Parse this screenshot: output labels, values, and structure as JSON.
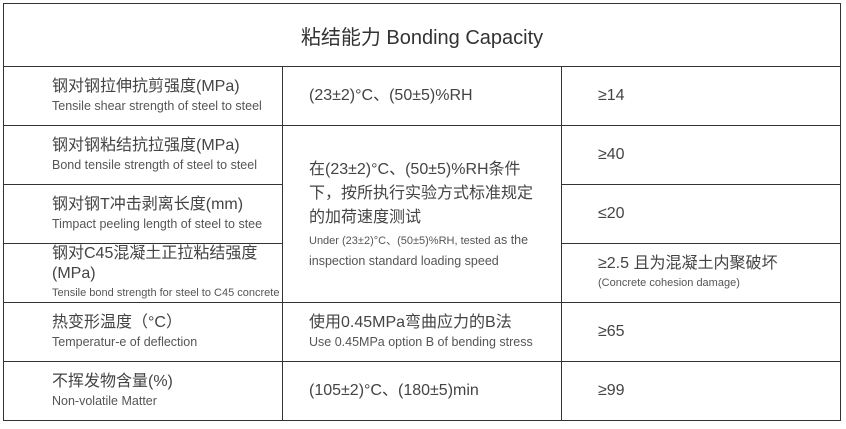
{
  "title": "粘结能力 Bonding Capacity",
  "rows": [
    {
      "name_zh": "钢对钢拉伸抗剪强度(MPa)",
      "name_en": "Tensile shear strength of steel to steel",
      "condition": "(23±2)°C、(50±5)%RH",
      "value": "≥14"
    },
    {
      "name_zh": "钢对钢粘结抗拉强度(MPa)",
      "name_en": "Bond tensile strength of steel to steel",
      "value": "≥40"
    },
    {
      "name_zh": "钢对钢T冲击剥离长度(mm)",
      "name_en": "Timpact peeling length of steel to stee",
      "value": "≤20"
    },
    {
      "name_zh": "钢对C45混凝土正拉粘结强度(MPa)",
      "name_en": "Tensile bond strength for steel to C45 concrete",
      "value": "≥2.5 且为混凝土内聚破坏",
      "value_en": "(Concrete cohesion damage)"
    },
    {
      "name_zh": "热变形温度（°C）",
      "name_en": "Temperatur-e of deflection",
      "condition_zh": "使用0.45MPa弯曲应力的B法",
      "condition_en": "Use 0.45MPa option B of bending stress",
      "value": "≥65"
    },
    {
      "name_zh": "不挥发物含量(%)",
      "name_en": "Non-volatile Matter",
      "condition": "(105±2)°C、(180±5)min",
      "value": "≥99"
    }
  ],
  "shared_condition": {
    "zh": "在(23±2)°C、(50±5)%RH条件下，按所执行实验方式标准规定的加荷速度测试",
    "en_a": "Under (23±2)°C、(50±5)%RH, tested",
    "en_b": "as the inspection standard loading speed"
  }
}
